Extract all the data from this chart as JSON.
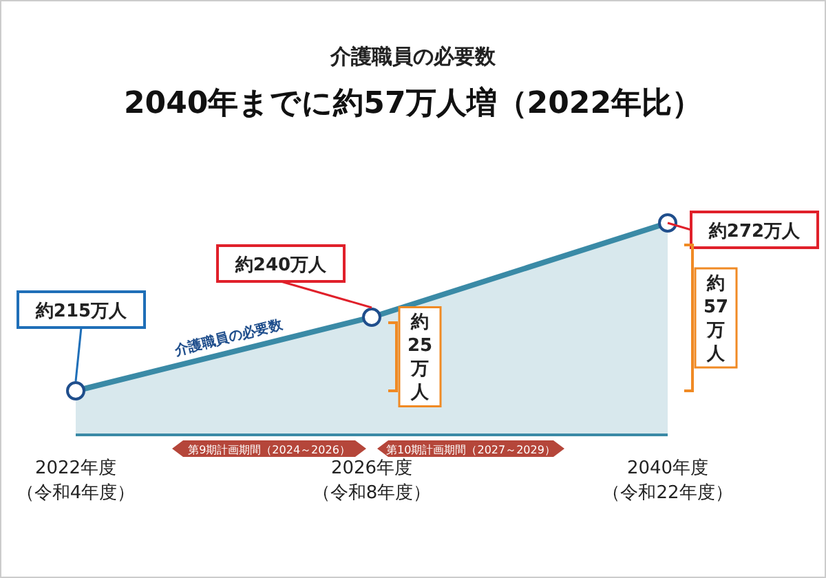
{
  "chart_data": {
    "type": "area",
    "title": "介護職員の必要数",
    "subtitle": "2040年までに約57万人増（2022年比）",
    "categories": [
      "2022年度（令和4年度）",
      "2026年度（令和8年度）",
      "2040年度（令和22年度）"
    ],
    "values": [
      215,
      240,
      272
    ],
    "value_labels": [
      "約215万人",
      "約240万人",
      "約272万人"
    ],
    "color": "#3a8aa6",
    "marker": "circle",
    "annotations": [
      "介護職員の必要数",
      "約25万人",
      "約57万人",
      "第9期計画期間（2024～2026）",
      "第10期計画期間（2027～2029）"
    ]
  }
}
